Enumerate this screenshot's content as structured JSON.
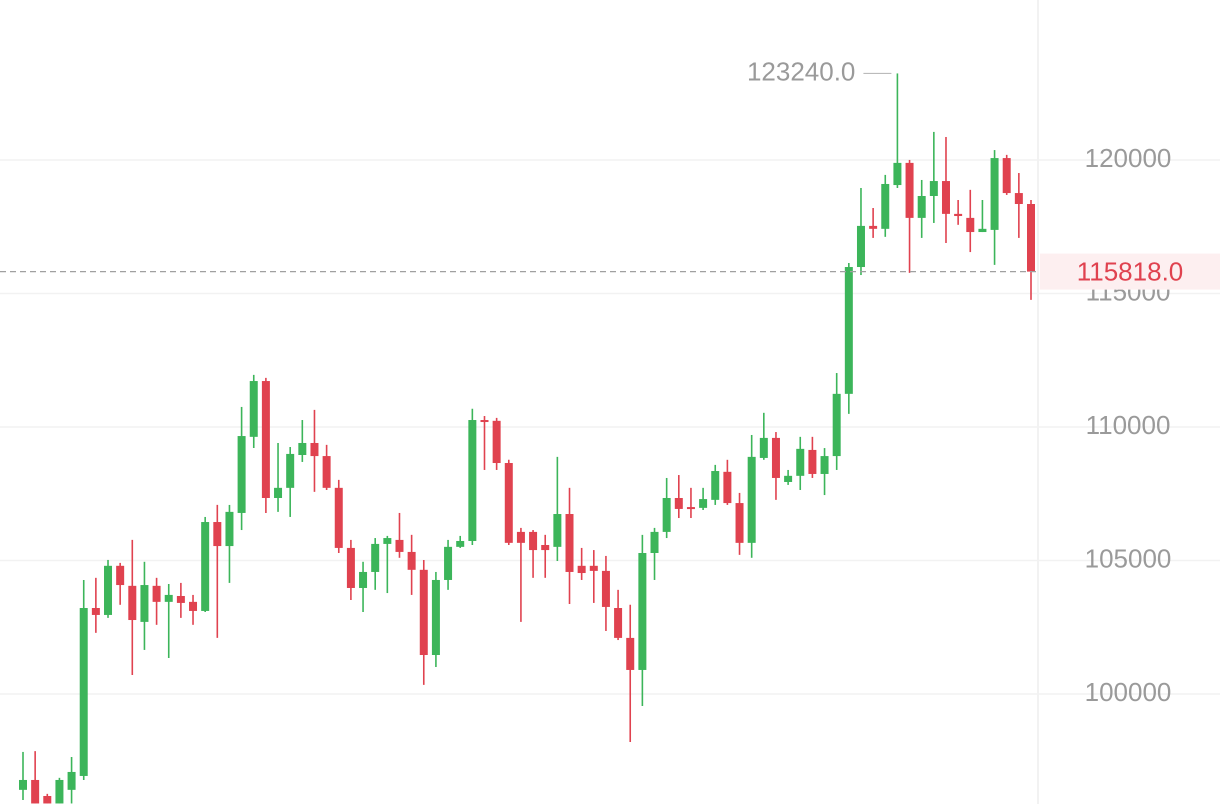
{
  "chart_data": {
    "type": "candlestick",
    "open": [
      96410,
      96780,
      96180,
      95900,
      96410,
      96930,
      103220,
      102960,
      104800,
      104050,
      102700,
      104050,
      103450,
      103670,
      103450,
      103110,
      106440,
      105540,
      106780,
      109630,
      111720,
      107340,
      107720,
      108950,
      109400,
      108910,
      107720,
      105470,
      103970,
      104570,
      105620,
      105770,
      105320,
      104650,
      101460,
      104270,
      105510,
      105730,
      110260,
      110230,
      108650,
      106070,
      106070,
      105580,
      105510,
      106740,
      104800,
      104800,
      104610,
      103220,
      102100,
      100900,
      105280,
      106070,
      107340,
      107000,
      106970,
      107270,
      108320,
      107150,
      105660,
      108840,
      109590,
      107940,
      108170,
      109140,
      108240,
      108910,
      111240,
      115990,
      117530,
      117420,
      119060,
      119890,
      117830,
      118650,
      119210,
      117980,
      117830,
      117300,
      117380,
      120070,
      118760,
      118350
    ],
    "high": [
      97830,
      97860,
      96260,
      96860,
      97640,
      104270,
      104350,
      105020,
      104910,
      105770,
      104950,
      104350,
      104120,
      104160,
      103710,
      106630,
      107080,
      107080,
      110750,
      111950,
      111840,
      109400,
      109250,
      110260,
      110640,
      109330,
      108020,
      105770,
      104950,
      105840,
      105920,
      106780,
      105960,
      105020,
      104570,
      105770,
      105920,
      110680,
      110410,
      110340,
      108770,
      106220,
      106140,
      105960,
      108880,
      107720,
      105470,
      105390,
      105170,
      103900,
      103340,
      105960,
      106220,
      108090,
      108200,
      107720,
      107720,
      108580,
      108770,
      107530,
      109700,
      110530,
      109810,
      108390,
      109630,
      109630,
      109210,
      112020,
      116140,
      118950,
      118200,
      119440,
      123240,
      120000,
      119250,
      121050,
      120860,
      118500,
      118880,
      118500,
      120370,
      120190,
      119510,
      118500
    ],
    "low": [
      96030,
      95900,
      95900,
      95900,
      95900,
      96780,
      102290,
      102850,
      103340,
      100710,
      101650,
      102590,
      101350,
      102850,
      102590,
      103070,
      102100,
      104160,
      106140,
      109210,
      106780,
      106820,
      106630,
      108690,
      107570,
      107640,
      105280,
      103520,
      103070,
      103900,
      103780,
      105100,
      103710,
      100340,
      101010,
      103900,
      105470,
      105580,
      108390,
      108390,
      105580,
      102700,
      104350,
      104350,
      104980,
      103370,
      104270,
      103410,
      102360,
      102020,
      98200,
      99550,
      104270,
      105840,
      106590,
      106590,
      106890,
      107080,
      107080,
      105210,
      105100,
      108770,
      107270,
      107830,
      107640,
      108090,
      107450,
      108390,
      110490,
      115690,
      117080,
      117120,
      118950,
      115770,
      117080,
      117640,
      116890,
      117570,
      116550,
      117300,
      116070,
      118690,
      117080,
      114760
    ],
    "close": [
      96780,
      95900,
      95900,
      96780,
      97080,
      103220,
      102960,
      104800,
      104080,
      102770,
      104080,
      103450,
      103710,
      103410,
      103110,
      106440,
      105540,
      106820,
      109660,
      111720,
      107340,
      107720,
      108990,
      109400,
      108910,
      107720,
      105470,
      103970,
      104570,
      105620,
      105840,
      105320,
      104650,
      101460,
      104270,
      105510,
      105730,
      110260,
      110190,
      108650,
      105660,
      105660,
      105390,
      105390,
      106740,
      104570,
      104530,
      104610,
      103260,
      102100,
      100900,
      105280,
      106070,
      107340,
      106930,
      106930,
      107300,
      108350,
      107150,
      105660,
      108880,
      109590,
      108090,
      108170,
      109180,
      108240,
      108910,
      111240,
      115990,
      117530,
      117420,
      119100,
      119890,
      117830,
      118650,
      119210,
      117980,
      117900,
      117300,
      117420,
      120070,
      118760,
      118350,
      115818
    ],
    "up_color": "#3cb55a",
    "down_color": "#e0424f",
    "ylim": [
      95880,
      125990
    ],
    "yticks": [
      100000,
      105000,
      110000,
      115000,
      120000
    ],
    "grid": true,
    "high_marker": {
      "value": 123240,
      "label": "123240.0"
    },
    "last_price": {
      "value": 115818,
      "label": "115818.0"
    }
  }
}
